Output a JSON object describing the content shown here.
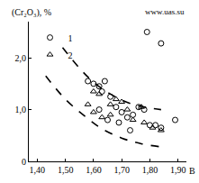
{
  "chart_data": {
    "type": "scatter",
    "x_label": "B",
    "y_label": "(Cr₂O₃), %",
    "annotations": [
      "www.uas.su"
    ],
    "xlim": [
      1.37,
      1.93
    ],
    "ylim": [
      0,
      2.7
    ],
    "xticks": [
      {
        "value": 1.4,
        "label": "1,40"
      },
      {
        "value": 1.5,
        "label": "1,50"
      },
      {
        "value": 1.6,
        "label": "1,60"
      },
      {
        "value": 1.7,
        "label": "1,70"
      },
      {
        "value": 1.8,
        "label": "1,80"
      },
      {
        "value": 1.9,
        "label": "1,90"
      }
    ],
    "yticks": [
      0,
      {
        "value": 1,
        "label": "1,0"
      },
      {
        "value": 2,
        "label": "2,0"
      }
    ],
    "grid": false,
    "legend": "top-left",
    "series": [
      {
        "name": "1",
        "type": "scatter",
        "marker": "circle-open",
        "color": "#000000",
        "x": [
          1.79,
          1.84,
          1.58,
          1.6,
          1.62,
          1.64,
          1.63,
          1.66,
          1.68,
          1.7,
          1.72,
          1.74,
          1.69,
          1.76,
          1.78,
          1.8,
          1.82,
          1.84,
          1.89,
          1.62,
          1.65,
          1.73
        ],
        "values": [
          2.5,
          2.28,
          1.55,
          1.5,
          1.45,
          1.55,
          1.35,
          1.25,
          1.05,
          0.95,
          0.85,
          0.9,
          0.75,
          1.05,
          1.0,
          0.7,
          0.7,
          0.65,
          0.8,
          1.0,
          0.8,
          0.6
        ]
      },
      {
        "name": "2",
        "type": "scatter",
        "marker": "triangle-up-open",
        "color": "#000000",
        "x": [
          1.6,
          1.62,
          1.58,
          1.6,
          1.63,
          1.66,
          1.68,
          1.7,
          1.72,
          1.74,
          1.77,
          1.78,
          1.81,
          1.84,
          1.66
        ],
        "values": [
          1.35,
          1.3,
          1.1,
          0.95,
          0.85,
          1.1,
          1.2,
          1.15,
          1.0,
          0.8,
          1.05,
          0.75,
          0.65,
          0.6,
          0.9
        ]
      },
      {
        "type": "line",
        "line_style": "dash",
        "color": "#000000",
        "x": [
          1.49,
          1.55,
          1.6,
          1.66,
          1.73,
          1.79,
          1.84
        ],
        "values": [
          2.2,
          1.8,
          1.53,
          1.3,
          1.12,
          1.04,
          1.0
        ]
      },
      {
        "type": "line",
        "line_style": "dash",
        "color": "#000000",
        "x": [
          1.43,
          1.5,
          1.57,
          1.63,
          1.7,
          1.77,
          1.84
        ],
        "values": [
          1.65,
          1.2,
          0.87,
          0.63,
          0.45,
          0.34,
          0.28
        ]
      }
    ]
  }
}
